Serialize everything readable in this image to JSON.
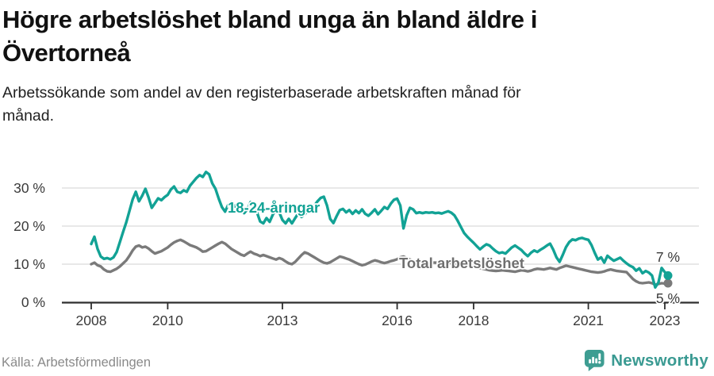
{
  "header": {
    "title_lines": [
      "Högre arbetslöshet bland unga än bland äldre i",
      "Övertorneå"
    ],
    "subtitle_lines": [
      "Arbetssökande som andel av den registerbaserade arbetskraften månad för",
      "månad."
    ]
  },
  "footer": {
    "source": "Källa: Arbetsförmedlingen",
    "brand_name": "Newsworthy"
  },
  "colors": {
    "youth_line": "#12a295",
    "total_line": "#7a7a7a",
    "axis": "#2e2e2e",
    "gridline": "#e0e0e0",
    "axis_text": "#3a3a3a",
    "brand_teal": "#3a9a92"
  },
  "chart_data": {
    "type": "line",
    "unit": "%",
    "start": "2008-01",
    "frequency": "monthly",
    "x_tick_years": [
      2008,
      2010,
      2013,
      2016,
      2018,
      2021,
      2023
    ],
    "y_ticks": [
      {
        "value": 0,
        "label": "0 %"
      },
      {
        "value": 10,
        "label": "10 %"
      },
      {
        "value": 20,
        "label": "20 %"
      },
      {
        "value": 30,
        "label": "30 %"
      }
    ],
    "gridlines": [
      10,
      20,
      30
    ],
    "ylim": [
      0,
      35
    ],
    "legend_position": "inline",
    "grid": "horizontal-only",
    "series": [
      {
        "name": "Total arbetslöshet",
        "end_label": "5 %",
        "end_value": 5,
        "values": [
          10.0,
          10.4,
          9.7,
          9.4,
          8.6,
          8.1,
          8.0,
          8.4,
          8.8,
          9.4,
          10.2,
          11.0,
          12.2,
          13.6,
          14.6,
          14.9,
          14.4,
          14.6,
          14.1,
          13.4,
          12.8,
          13.1,
          13.4,
          13.9,
          14.4,
          15.1,
          15.7,
          16.1,
          16.4,
          16.0,
          15.5,
          15.0,
          14.7,
          14.4,
          13.9,
          13.3,
          13.4,
          13.9,
          14.4,
          14.9,
          15.4,
          15.8,
          15.4,
          14.7,
          14.0,
          13.5,
          13.0,
          12.5,
          12.2,
          12.8,
          13.3,
          12.8,
          12.5,
          12.1,
          12.4,
          12.1,
          11.8,
          11.5,
          11.2,
          11.6,
          11.3,
          10.7,
          10.2,
          10.0,
          10.6,
          11.5,
          12.4,
          13.1,
          12.8,
          12.3,
          11.8,
          11.3,
          10.8,
          10.4,
          10.2,
          10.5,
          11.0,
          11.5,
          12.0,
          11.8,
          11.5,
          11.2,
          10.8,
          10.4,
          10.0,
          9.7,
          9.9,
          10.3,
          10.7,
          11.0,
          10.8,
          10.5,
          10.3,
          10.5,
          10.8,
          11.0,
          11.3,
          11.8,
          12.0,
          11.6,
          11.2,
          10.9,
          10.7,
          10.6,
          10.6,
          10.5,
          10.5,
          10.4,
          10.4,
          10.3,
          10.2,
          10.3,
          10.4,
          10.3,
          10.1,
          10.0,
          9.9,
          9.8,
          9.7,
          9.6,
          9.5,
          9.2,
          9.0,
          8.8,
          8.6,
          8.4,
          8.3,
          8.2,
          8.3,
          8.4,
          8.3,
          8.2,
          8.1,
          8.0,
          8.2,
          8.4,
          8.3,
          8.1,
          8.3,
          8.6,
          8.8,
          8.7,
          8.6,
          8.8,
          9.0,
          8.8,
          8.6,
          9.0,
          9.3,
          9.6,
          9.4,
          9.2,
          9.0,
          8.8,
          8.6,
          8.4,
          8.2,
          8.0,
          7.9,
          7.8,
          7.9,
          8.1,
          8.4,
          8.6,
          8.4,
          8.2,
          8.1,
          8.0,
          7.9,
          7.0,
          6.1,
          5.5,
          5.1,
          5.0,
          5.1,
          5.2,
          5.0,
          4.6,
          4.8,
          5.0,
          4.9,
          5.0
        ]
      },
      {
        "name": "18-24-åringar",
        "end_label": "7 %",
        "end_value": 7,
        "values": [
          15.3,
          17.2,
          14.0,
          12.0,
          11.4,
          11.6,
          11.3,
          11.8,
          13.2,
          15.8,
          18.5,
          21.0,
          24.0,
          27.0,
          29.0,
          26.5,
          28.0,
          29.8,
          27.5,
          24.8,
          26.0,
          27.3,
          26.8,
          27.6,
          28.2,
          29.6,
          30.4,
          29.0,
          28.7,
          29.4,
          29.0,
          30.6,
          31.6,
          32.6,
          33.4,
          32.9,
          34.2,
          33.6,
          31.2,
          29.8,
          27.2,
          25.0,
          23.8,
          25.6,
          26.3,
          25.1,
          26.1,
          25.4,
          23.4,
          24.4,
          26.3,
          25.5,
          23.6,
          21.2,
          20.7,
          22.1,
          21.1,
          23.0,
          24.4,
          23.6,
          21.6,
          20.7,
          21.9,
          20.7,
          22.1,
          23.4,
          22.4,
          23.1,
          24.1,
          25.0,
          25.4,
          26.5,
          27.4,
          27.7,
          25.4,
          21.9,
          20.8,
          22.6,
          24.2,
          24.5,
          23.6,
          24.2,
          23.2,
          24.1,
          23.4,
          24.4,
          23.2,
          22.7,
          23.5,
          24.4,
          23.1,
          24.0,
          25.0,
          24.5,
          25.9,
          26.9,
          27.2,
          25.4,
          19.4,
          22.8,
          24.8,
          24.4,
          23.4,
          23.6,
          23.4,
          23.6,
          23.5,
          23.6,
          23.4,
          23.5,
          23.3,
          23.6,
          23.9,
          23.5,
          22.8,
          21.4,
          19.8,
          18.2,
          17.2,
          16.4,
          15.6,
          14.7,
          13.9,
          14.6,
          15.2,
          14.9,
          14.1,
          13.4,
          12.9,
          13.1,
          12.8,
          13.6,
          14.4,
          14.9,
          14.3,
          13.7,
          12.8,
          12.1,
          13.0,
          13.6,
          13.2,
          13.8,
          14.3,
          14.9,
          15.4,
          13.8,
          11.8,
          10.6,
          12.5,
          14.5,
          15.8,
          16.5,
          16.3,
          16.7,
          16.9,
          16.6,
          16.4,
          15.0,
          13.0,
          11.2,
          11.8,
          10.4,
          12.2,
          11.5,
          10.9,
          11.3,
          11.7,
          10.9,
          10.2,
          9.6,
          9.2,
          8.3,
          8.9,
          7.6,
          8.2,
          7.8,
          7.0,
          3.9,
          5.2,
          9.0,
          7.9,
          7.0
        ]
      }
    ]
  }
}
